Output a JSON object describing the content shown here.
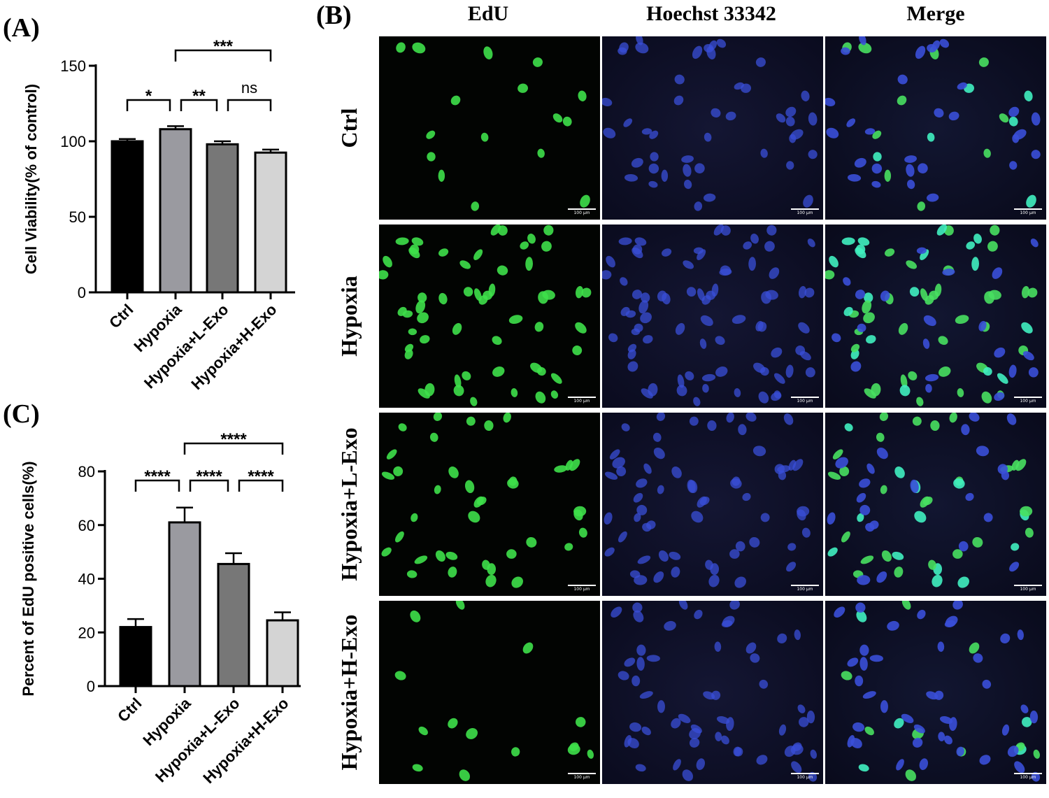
{
  "panel_labels": {
    "a": "(A)",
    "b": "(B)",
    "c": "(C)"
  },
  "micrograph_grid": {
    "columns": [
      "EdU",
      "Hoechst 33342",
      "Merge"
    ],
    "rows": [
      "Ctrl",
      "Hypoxia",
      "Hypoxia+L-Exo",
      "Hypoxia+H-Exo"
    ],
    "scale_bar_label": "100 μm"
  },
  "chart_data": [
    {
      "type": "bar",
      "categories": [
        "Ctrl",
        "Hypoxia",
        "Hypoxia+L-Exo",
        "Hypoxia+H-Exo"
      ],
      "values": [
        100,
        108,
        98,
        92.5
      ],
      "errors": [
        1.5,
        2,
        2,
        2
      ],
      "ylabel": "Cell Viability(% of control)",
      "ylim": [
        0,
        150
      ],
      "yticks": [
        0,
        50,
        100,
        150
      ],
      "bar_colors": [
        "#000000",
        "#9a9aa0",
        "#777777",
        "#d4d4d4"
      ],
      "significance": [
        {
          "from": 0,
          "to": 1,
          "label": "*"
        },
        {
          "from": 1,
          "to": 2,
          "label": "**"
        },
        {
          "from": 2,
          "to": 3,
          "label": "ns"
        },
        {
          "from": 1,
          "to": 3,
          "label": "***"
        }
      ]
    },
    {
      "type": "bar",
      "categories": [
        "Ctrl",
        "Hypoxia",
        "Hypoxia+L-Exo",
        "Hypoxia+H-Exo"
      ],
      "values": [
        22,
        61,
        45.5,
        24.5
      ],
      "errors": [
        3,
        5.5,
        4,
        3
      ],
      "ylabel": "Percent of EdU positive cells(%)",
      "ylim": [
        0,
        80
      ],
      "yticks": [
        0,
        20,
        40,
        60,
        80
      ],
      "bar_colors": [
        "#000000",
        "#9a9aa0",
        "#777777",
        "#d4d4d4"
      ],
      "significance": [
        {
          "from": 0,
          "to": 1,
          "label": "****"
        },
        {
          "from": 1,
          "to": 2,
          "label": "****"
        },
        {
          "from": 2,
          "to": 3,
          "label": "****"
        },
        {
          "from": 1,
          "to": 3,
          "label": "****"
        }
      ]
    }
  ]
}
